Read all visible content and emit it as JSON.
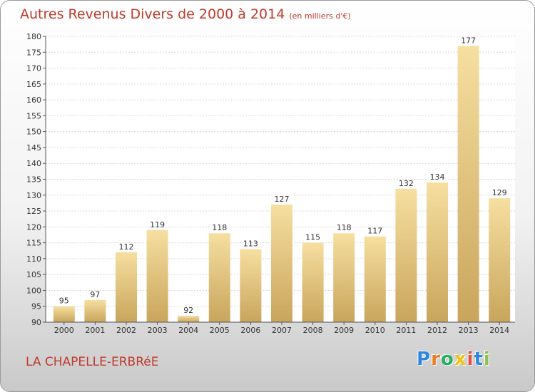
{
  "title": "Autres Revenus Divers de 2000 à 2014",
  "subtitle": "(en milliers d'€)",
  "location": "LA CHAPELLE-ERBRéE",
  "logo": {
    "letters": [
      "P",
      "r",
      "o",
      "x",
      "i",
      "t",
      "i"
    ],
    "colors": [
      "#2e86de",
      "#e67e22",
      "#27ae60",
      "#f1c40f",
      "#e74c3c",
      "#2e86de",
      "#8bc34a"
    ]
  },
  "colors": {
    "title": "#c0392b",
    "bar_light": "#f6dfa0",
    "bar_dark": "#c9a55c",
    "grid": "#d9d9d9"
  },
  "chart_data": {
    "type": "bar",
    "categories": [
      "2000",
      "2001",
      "2002",
      "2003",
      "2004",
      "2005",
      "2006",
      "2007",
      "2008",
      "2009",
      "2010",
      "2011",
      "2012",
      "2013",
      "2014"
    ],
    "values": [
      95,
      97,
      112,
      119,
      92,
      118,
      113,
      127,
      115,
      118,
      117,
      132,
      134,
      177,
      129
    ],
    "ylim": [
      90,
      180
    ],
    "yticks": [
      90,
      95,
      100,
      105,
      110,
      115,
      120,
      125,
      130,
      135,
      140,
      145,
      150,
      155,
      160,
      165,
      170,
      175,
      180
    ],
    "grid": true
  }
}
